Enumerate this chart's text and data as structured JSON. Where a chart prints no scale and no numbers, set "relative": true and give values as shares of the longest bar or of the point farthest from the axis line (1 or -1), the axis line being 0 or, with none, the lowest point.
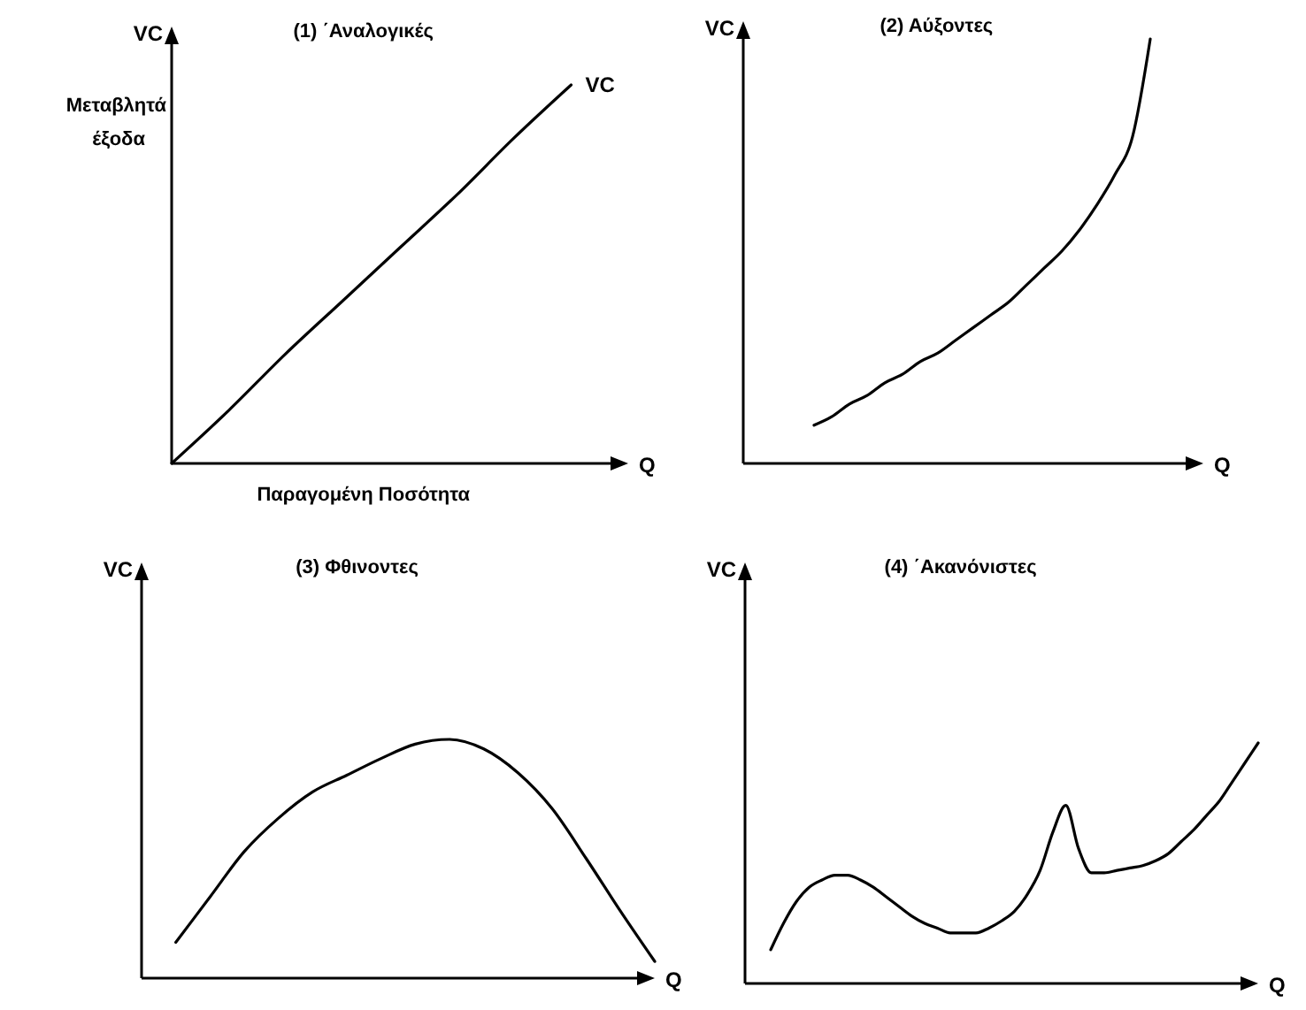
{
  "chart_data": [
    {
      "type": "line",
      "relative": true,
      "title": "(1) ΄Αναλογικές",
      "xlabel": "Q",
      "ylabel": "VC",
      "annotations": [
        "Μεταβλητά έξοδα",
        "Παραγομένη Ποσότητα"
      ],
      "categories": [
        null,
        null,
        null,
        null,
        null,
        null,
        null,
        null,
        null
      ],
      "series": [
        {
          "name": "VC",
          "color": "#000000",
          "values": [
            0,
            0.14,
            0.29,
            0.43,
            0.57,
            0.71,
            0.86,
            1,
            null
          ]
        }
      ]
    },
    {
      "type": "line",
      "relative": true,
      "title": "(2) Αύξοντες",
      "xlabel": "Q",
      "ylabel": "VC",
      "categories": [
        null,
        null,
        null,
        null,
        null,
        null,
        null,
        null,
        null,
        null,
        null,
        null,
        null,
        null,
        null,
        null,
        null,
        null,
        null,
        null,
        null,
        null,
        null,
        null,
        null,
        null,
        null
      ],
      "series": [
        {
          "color": "#000000",
          "values": [
            null,
            null,
            null,
            null,
            0.09,
            0.11,
            0.14,
            0.16,
            0.19,
            0.21,
            0.24,
            0.26,
            0.29,
            0.32,
            0.35,
            0.38,
            0.42,
            0.46,
            0.5,
            0.55,
            0.61,
            0.68,
            0.77,
            1,
            null,
            null,
            null
          ]
        }
      ]
    },
    {
      "type": "line",
      "relative": true,
      "title": "(3) Φθινοντες",
      "xlabel": "Q",
      "ylabel": "VC",
      "categories": [
        null,
        null,
        null,
        null,
        null,
        null,
        null,
        null,
        null,
        null,
        null,
        null,
        null,
        null,
        null,
        null
      ],
      "series": [
        {
          "color": "#000000",
          "values": [
            null,
            0.15,
            0.34,
            0.53,
            0.67,
            0.78,
            0.85,
            0.92,
            0.98,
            1,
            0.96,
            0.86,
            0.71,
            0.5,
            0.28,
            0.07
          ]
        }
      ]
    },
    {
      "type": "line",
      "relative": true,
      "title": "(4) ΄Ακανόνιστες",
      "xlabel": "Q",
      "ylabel": "VC",
      "categories": [
        null,
        null,
        null,
        null,
        null,
        null,
        null,
        null,
        null,
        null,
        null,
        null,
        null,
        null,
        null,
        null,
        null,
        null,
        null,
        null,
        null,
        null,
        null,
        null,
        null,
        null,
        null,
        null,
        null,
        null,
        null,
        null,
        null,
        null,
        null,
        null,
        null,
        null,
        null,
        null,
        null
      ],
      "series": [
        {
          "color": "#000000",
          "values": [
            null,
            null,
            0.14,
            0.25,
            0.34,
            0.4,
            0.43,
            0.45,
            0.45,
            0.43,
            0.4,
            0.36,
            0.32,
            0.28,
            0.25,
            0.23,
            0.21,
            0.21,
            0.21,
            0.23,
            0.26,
            0.3,
            0.37,
            0.47,
            0.63,
            0.74,
            0.56,
            0.46,
            0.46,
            0.47,
            0.48,
            0.49,
            0.51,
            0.54,
            0.59,
            0.64,
            0.7,
            0.76,
            0.84,
            0.92,
            1
          ]
        }
      ]
    }
  ]
}
